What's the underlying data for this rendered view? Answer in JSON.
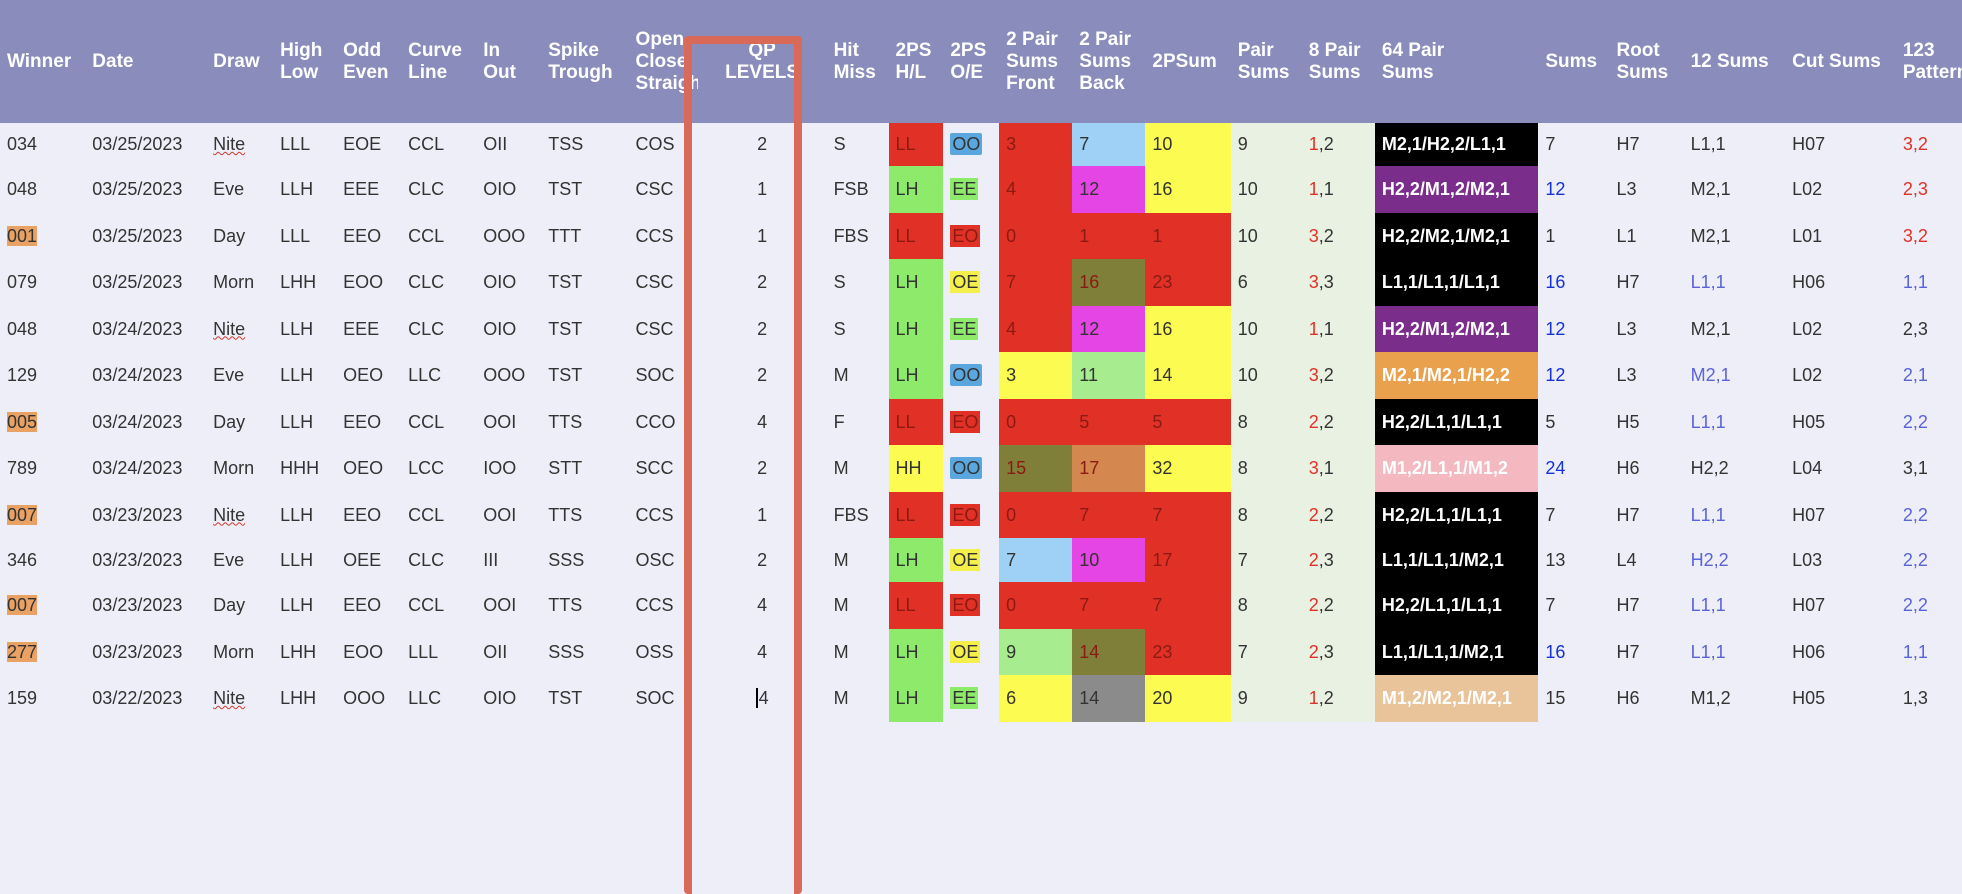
{
  "headers": [
    "Winner",
    "Date",
    "Draw",
    "High\nLow",
    "Odd\nEven",
    "Curve\nLine",
    "In\nOut",
    "Spike\nTrough",
    "Open\nClose.\nStraigh",
    "QP\nLEVELS",
    "Hit\nMiss",
    "2PS\nH/L",
    "2PS\nO/E",
    "2 Pair\nSums\nFront",
    "2 Pair\nSums\nBack",
    "2PSum",
    "Pair\nSums",
    "8 Pair\nSums",
    "64 Pair\nSums",
    "Sums",
    "Root\nSums",
    "12 Sums",
    "Cut Sums",
    "123\nPattern"
  ],
  "rows": [
    {
      "winner": "034",
      "date": "03/25/2023",
      "draw": "Nite",
      "hl": "LLL",
      "oe": "EOE",
      "cl": "CCL",
      "io": "OII",
      "st": "TSS",
      "ocs": "COS",
      "qp": "2",
      "hm": "S",
      "ps_hl": "LL",
      "ps_oe": "OO",
      "front": "3",
      "back": "7",
      "psum": "10",
      "pairsums": "9",
      "eight_a": "1",
      "eight_b": ",2",
      "sixtyfour": "M2,1/H2,2/L1,1",
      "sums": "7",
      "root": "H7",
      "twelve": "L1,1",
      "cut": "H07",
      "pattern": "3,2"
    },
    {
      "winner": "048",
      "date": "03/25/2023",
      "draw": "Eve",
      "hl": "LLH",
      "oe": "EEE",
      "cl": "CLC",
      "io": "OIO",
      "st": "TST",
      "ocs": "CSC",
      "qp": "1",
      "hm": "FSB",
      "ps_hl": "LH",
      "ps_oe": "EE",
      "front": "4",
      "back": "12",
      "psum": "16",
      "pairsums": "10",
      "eight_a": "1",
      "eight_b": ",1",
      "sixtyfour": "H2,2/M1,2/M2,1",
      "sums": "12",
      "root": "L3",
      "twelve": "M2,1",
      "cut": "L02",
      "pattern": "2,3"
    },
    {
      "winner": "001",
      "date": "03/25/2023",
      "draw": "Day",
      "hl": "LLL",
      "oe": "EEO",
      "cl": "CCL",
      "io": "OOO",
      "st": "TTT",
      "ocs": "CCS",
      "qp": "1",
      "hm": "FBS",
      "ps_hl": "LL",
      "ps_oe": "EO",
      "front": "0",
      "back": "1",
      "psum": "1",
      "pairsums": "10",
      "eight_a": "3",
      "eight_b": ",2",
      "sixtyfour": "H2,2/M2,1/M2,1",
      "sums": "1",
      "root": "L1",
      "twelve": "M2,1",
      "cut": "L01",
      "pattern": "3,2"
    },
    {
      "winner": "079",
      "date": "03/25/2023",
      "draw": "Morn",
      "hl": "LHH",
      "oe": "EOO",
      "cl": "CLC",
      "io": "OIO",
      "st": "TST",
      "ocs": "CSC",
      "qp": "2",
      "hm": "S",
      "ps_hl": "LH",
      "ps_oe": "OE",
      "front": "7",
      "back": "16",
      "psum": "23",
      "pairsums": "6",
      "eight_a": "3",
      "eight_b": ",3",
      "sixtyfour": "L1,1/L1,1/L1,1",
      "sums": "16",
      "root": "H7",
      "twelve": "L1,1",
      "cut": "H06",
      "pattern": "1,1"
    },
    {
      "winner": "048",
      "date": "03/24/2023",
      "draw": "Nite",
      "hl": "LLH",
      "oe": "EEE",
      "cl": "CLC",
      "io": "OIO",
      "st": "TST",
      "ocs": "CSC",
      "qp": "2",
      "hm": "S",
      "ps_hl": "LH",
      "ps_oe": "EE",
      "front": "4",
      "back": "12",
      "psum": "16",
      "pairsums": "10",
      "eight_a": "1",
      "eight_b": ",1",
      "sixtyfour": "H2,2/M1,2/M2,1",
      "sums": "12",
      "root": "L3",
      "twelve": "M2,1",
      "cut": "L02",
      "pattern": "2,3"
    },
    {
      "winner": "129",
      "date": "03/24/2023",
      "draw": "Eve",
      "hl": "LLH",
      "oe": "OEO",
      "cl": "LLC",
      "io": "OOO",
      "st": "TST",
      "ocs": "SOC",
      "qp": "2",
      "hm": "M",
      "ps_hl": "LH",
      "ps_oe": "OO",
      "front": "3",
      "back": "11",
      "psum": "14",
      "pairsums": "10",
      "eight_a": "3",
      "eight_b": ",2",
      "sixtyfour": "M2,1/M2,1/H2,2",
      "sums": "12",
      "root": "L3",
      "twelve": "M2,1",
      "cut": "L02",
      "pattern": "2,1"
    },
    {
      "winner": "005",
      "date": "03/24/2023",
      "draw": "Day",
      "hl": "LLH",
      "oe": "EEO",
      "cl": "CCL",
      "io": "OOI",
      "st": "TTS",
      "ocs": "CCO",
      "qp": "4",
      "hm": "F",
      "ps_hl": "LL",
      "ps_oe": "EO",
      "front": "0",
      "back": "5",
      "psum": "5",
      "pairsums": "8",
      "eight_a": "2",
      "eight_b": ",2",
      "sixtyfour": "H2,2/L1,1/L1,1",
      "sums": "5",
      "root": "H5",
      "twelve": "L1,1",
      "cut": "H05",
      "pattern": "2,2"
    },
    {
      "winner": "789",
      "date": "03/24/2023",
      "draw": "Morn",
      "hl": "HHH",
      "oe": "OEO",
      "cl": "LCC",
      "io": "IOO",
      "st": "STT",
      "ocs": "SCC",
      "qp": "2",
      "hm": "M",
      "ps_hl": "HH",
      "ps_oe": "OO",
      "front": "15",
      "back": "17",
      "psum": "32",
      "pairsums": "8",
      "eight_a": "3",
      "eight_b": ",1",
      "sixtyfour": "M1,2/L1,1/M1,2",
      "sums": "24",
      "root": "H6",
      "twelve": "H2,2",
      "cut": "L04",
      "pattern": "3,1"
    },
    {
      "winner": "007",
      "date": "03/23/2023",
      "draw": "Nite",
      "hl": "LLH",
      "oe": "EEO",
      "cl": "CCL",
      "io": "OOI",
      "st": "TTS",
      "ocs": "CCS",
      "qp": "1",
      "hm": "FBS",
      "ps_hl": "LL",
      "ps_oe": "EO",
      "front": "0",
      "back": "7",
      "psum": "7",
      "pairsums": "8",
      "eight_a": "2",
      "eight_b": ",2",
      "sixtyfour": "H2,2/L1,1/L1,1",
      "sums": "7",
      "root": "H7",
      "twelve": "L1,1",
      "cut": "H07",
      "pattern": "2,2"
    },
    {
      "winner": "346",
      "date": "03/23/2023",
      "draw": "Eve",
      "hl": "LLH",
      "oe": "OEE",
      "cl": "CLC",
      "io": "III",
      "st": "SSS",
      "ocs": "OSC",
      "qp": "2",
      "hm": "M",
      "ps_hl": "LH",
      "ps_oe": "OE",
      "front": "7",
      "back": "10",
      "psum": "17",
      "pairsums": "7",
      "eight_a": "2",
      "eight_b": ",3",
      "sixtyfour": "L1,1/L1,1/M2,1",
      "sums": "13",
      "root": "L4",
      "twelve": "H2,2",
      "cut": "L03",
      "pattern": "2,2"
    },
    {
      "winner": "007",
      "date": "03/23/2023",
      "draw": "Day",
      "hl": "LLH",
      "oe": "EEO",
      "cl": "CCL",
      "io": "OOI",
      "st": "TTS",
      "ocs": "CCS",
      "qp": "4",
      "hm": "M",
      "ps_hl": "LL",
      "ps_oe": "EO",
      "front": "0",
      "back": "7",
      "psum": "7",
      "pairsums": "8",
      "eight_a": "2",
      "eight_b": ",2",
      "sixtyfour": "H2,2/L1,1/L1,1",
      "sums": "7",
      "root": "H7",
      "twelve": "L1,1",
      "cut": "H07",
      "pattern": "2,2"
    },
    {
      "winner": "277",
      "date": "03/23/2023",
      "draw": "Morn",
      "hl": "LHH",
      "oe": "EOO",
      "cl": "LLL",
      "io": "OII",
      "st": "SSS",
      "ocs": "OSS",
      "qp": "4",
      "hm": "M",
      "ps_hl": "LH",
      "ps_oe": "OE",
      "front": "9",
      "back": "14",
      "psum": "23",
      "pairsums": "7",
      "eight_a": "2",
      "eight_b": ",3",
      "sixtyfour": "L1,1/L1,1/M2,1",
      "sums": "16",
      "root": "H7",
      "twelve": "L1,1",
      "cut": "H06",
      "pattern": "1,1"
    },
    {
      "winner": "159",
      "date": "03/22/2023",
      "draw": "Nite",
      "hl": "LHH",
      "oe": "OOO",
      "cl": "LLC",
      "io": "OIO",
      "st": "TST",
      "ocs": "SOC",
      "qp": "4",
      "hm": "M",
      "ps_hl": "LH",
      "ps_oe": "EE",
      "front": "6",
      "back": "14",
      "psum": "20",
      "pairsums": "9",
      "eight_a": "1",
      "eight_b": ",2",
      "sixtyfour": "M1,2/M2,1/M2,1",
      "sums": "15",
      "root": "H6",
      "twelve": "M1,2",
      "cut": "H05",
      "pattern": "1,3"
    }
  ],
  "styles": {
    "winner_highlight": [
      false,
      false,
      true,
      false,
      false,
      false,
      true,
      false,
      true,
      false,
      true,
      true,
      false
    ],
    "ps_hl_bg": [
      "red",
      "green",
      "red",
      "green",
      "green",
      "green",
      "red",
      "yellow",
      "red",
      "green",
      "red",
      "green",
      "green"
    ],
    "ps_oe_tag": [
      "blue",
      "green",
      "red",
      "yellow",
      "green",
      "blue",
      "red",
      "blue",
      "red",
      "yellow",
      "red",
      "yellow",
      "green"
    ],
    "front_bg": [
      "red",
      "red",
      "red",
      "red",
      "red",
      "yellow",
      "red",
      "olive",
      "red",
      "lblue",
      "red",
      "lgreen",
      "yellow"
    ],
    "back_bg": [
      "lblue",
      "magenta",
      "red",
      "olive",
      "magenta",
      "lgreen",
      "red",
      "orange",
      "red",
      "magenta",
      "red",
      "olive",
      "gray"
    ],
    "psum_bg": [
      "yellow",
      "yellow",
      "red",
      "red",
      "yellow",
      "yellow",
      "red",
      "yellow",
      "red",
      "red",
      "red",
      "red",
      "yellow"
    ],
    "sixtyfour_bg": [
      "black",
      "purple",
      "black",
      "black",
      "purple",
      "peach",
      "black",
      "pink",
      "black",
      "black",
      "black",
      "black",
      "tan"
    ],
    "sums_color": [
      "",
      "blue",
      "",
      "blue",
      "blue",
      "blue",
      "",
      "blue",
      "",
      "",
      "",
      "blue",
      ""
    ],
    "twelve_color": [
      "",
      "",
      "",
      "lblue",
      "",
      "lblue",
      "lblue",
      "",
      "lblue",
      "lblue",
      "lblue",
      "lblue",
      ""
    ],
    "pattern_color": [
      "red",
      "red",
      "red",
      "lblue",
      "",
      "lblue",
      "lblue",
      "",
      "lblue",
      "lblue",
      "lblue",
      "lblue",
      ""
    ]
  }
}
